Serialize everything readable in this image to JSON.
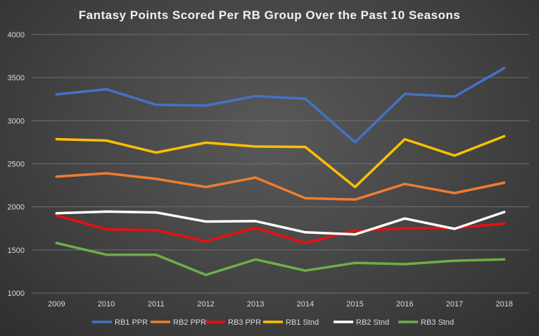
{
  "chart_data": {
    "type": "line",
    "title": "Fantasy Points Scored Per RB Group Over the Past 10 Seasons",
    "xlabel": "",
    "ylabel": "",
    "categories": [
      "2009",
      "2010",
      "2011",
      "2012",
      "2013",
      "2014",
      "2015",
      "2016",
      "2017",
      "2018"
    ],
    "ylim": [
      1000,
      4000
    ],
    "yticks": [
      "1000",
      "1500",
      "2000",
      "2500",
      "3000",
      "3500",
      "4000"
    ],
    "grid": true,
    "legend_position": "bottom",
    "series": [
      {
        "name": "RB1 PPR",
        "color": "#4472c4",
        "values": [
          3305,
          3365,
          3185,
          3175,
          3285,
          3255,
          2750,
          3310,
          3280,
          3610
        ]
      },
      {
        "name": "RB2 PPR",
        "color": "#ed7d31",
        "values": [
          2350,
          2390,
          2325,
          2230,
          2340,
          2100,
          2085,
          2265,
          2160,
          2280
        ]
      },
      {
        "name": "RB3 PPR",
        "color": "#e81010",
        "values": [
          1900,
          1740,
          1730,
          1600,
          1755,
          1580,
          1725,
          1750,
          1755,
          1805
        ]
      },
      {
        "name": "RB1 Stnd",
        "color": "#ffc000",
        "values": [
          2785,
          2770,
          2630,
          2745,
          2700,
          2695,
          2230,
          2785,
          2595,
          2820
        ]
      },
      {
        "name": "RB2 Stnd",
        "color": "#ffffff",
        "values": [
          1925,
          1945,
          1935,
          1830,
          1835,
          1705,
          1680,
          1865,
          1745,
          1940
        ]
      },
      {
        "name": "RB3 Stnd",
        "color": "#70ad47",
        "values": [
          1580,
          1445,
          1445,
          1210,
          1390,
          1260,
          1350,
          1335,
          1375,
          1390
        ]
      }
    ]
  }
}
